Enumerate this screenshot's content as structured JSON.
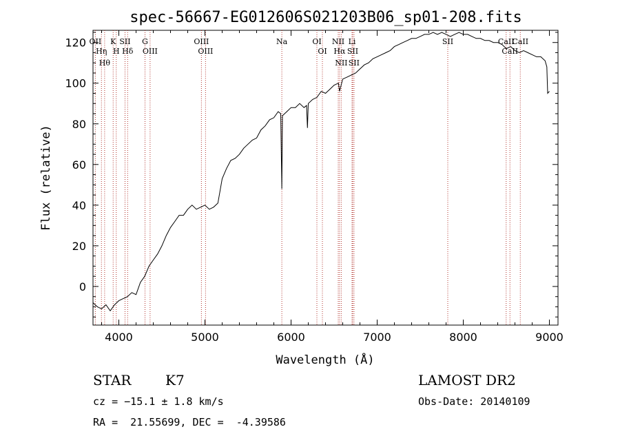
{
  "title": "spec-56667-EG012606S021203B06_sp01-208.fits",
  "chart_data": {
    "type": "line",
    "title": "spec-56667-EG012606S021203B06_sp01-208.fits",
    "xlabel": "Wavelength (Å)",
    "ylabel": "Flux (relative)",
    "xlim": [
      3700,
      9100
    ],
    "ylim": [
      -19,
      126
    ],
    "xticks": [
      4000,
      5000,
      6000,
      7000,
      8000,
      9000
    ],
    "yticks": [
      0,
      20,
      40,
      60,
      80,
      100,
      120
    ],
    "grid": false,
    "series": [
      {
        "x": [
          3700,
          3750,
          3800,
          3850,
          3900,
          3950,
          4000,
          4050,
          4100,
          4150,
          4200,
          4250,
          4300,
          4350,
          4400,
          4450,
          4500,
          4550,
          4600,
          4650,
          4700,
          4750,
          4800,
          4850,
          4900,
          4950,
          5000,
          5050,
          5100,
          5150,
          5200,
          5250,
          5300,
          5350,
          5400,
          5450,
          5500,
          5550,
          5600,
          5650,
          5700,
          5750,
          5800,
          5850,
          5880,
          5893,
          5900,
          5950,
          6000,
          6050,
          6100,
          6150,
          6180,
          6190,
          6200,
          6250,
          6300,
          6350,
          6400,
          6450,
          6500,
          6550,
          6563,
          6600,
          6650,
          6700,
          6750,
          6800,
          6850,
          6900,
          6950,
          7000,
          7050,
          7100,
          7150,
          7200,
          7250,
          7300,
          7350,
          7400,
          7450,
          7500,
          7550,
          7600,
          7650,
          7700,
          7750,
          7800,
          7850,
          7900,
          7950,
          8000,
          8050,
          8100,
          8150,
          8200,
          8250,
          8300,
          8350,
          8400,
          8450,
          8500,
          8550,
          8600,
          8650,
          8700,
          8750,
          8800,
          8850,
          8900,
          8950,
          8970,
          8980,
          9000
        ],
        "y": [
          -8,
          -10,
          -11,
          -9,
          -12,
          -9,
          -7,
          -6,
          -5,
          -3,
          -4,
          2,
          5,
          10,
          13,
          16,
          20,
          25,
          29,
          32,
          35,
          35,
          38,
          40,
          38,
          39,
          40,
          38,
          39,
          41,
          53,
          58,
          62,
          63,
          65,
          68,
          70,
          72,
          73,
          77,
          79,
          82,
          83,
          86,
          85,
          48,
          84,
          86,
          88,
          88,
          90,
          88,
          89,
          78,
          90,
          92,
          93,
          96,
          95,
          97,
          99,
          100,
          96,
          102,
          103,
          104,
          105,
          107,
          109,
          110,
          112,
          113,
          114,
          115,
          116,
          118,
          119,
          120,
          121,
          122,
          122,
          123,
          124,
          124,
          125,
          124,
          125,
          124,
          123,
          124,
          125,
          124,
          124,
          123,
          122,
          122,
          121,
          121,
          120,
          120,
          119,
          117,
          118,
          116,
          115,
          116,
          115,
          114,
          113,
          113,
          111,
          108,
          95,
          96
        ]
      }
    ],
    "line_markers": [
      {
        "wl": 3727,
        "labels": [
          "OII"
        ]
      },
      {
        "wl": 3798,
        "labels": [
          "Hη"
        ]
      },
      {
        "wl": 3835,
        "labels": [
          "Hθ"
        ]
      },
      {
        "wl": 3934,
        "labels": [
          "K"
        ]
      },
      {
        "wl": 3970,
        "labels": [
          "H"
        ]
      },
      {
        "wl": 4072,
        "labels": [
          "SII"
        ]
      },
      {
        "wl": 4102,
        "labels": [
          "Hδ"
        ]
      },
      {
        "wl": 4304,
        "labels": [
          "G"
        ]
      },
      {
        "wl": 4363,
        "labels": [
          "OIII"
        ]
      },
      {
        "wl": 4959,
        "labels": [
          "OIII"
        ]
      },
      {
        "wl": 5007,
        "labels": [
          "OIII"
        ]
      },
      {
        "wl": 5893,
        "labels": [
          "Na"
        ]
      },
      {
        "wl": 6300,
        "labels": [
          "OI"
        ]
      },
      {
        "wl": 6364,
        "labels": [
          "OI"
        ]
      },
      {
        "wl": 6548,
        "labels": [
          "NII"
        ]
      },
      {
        "wl": 6563,
        "labels": [
          "Hα"
        ]
      },
      {
        "wl": 6583,
        "labels": [
          "NII"
        ]
      },
      {
        "wl": 6708,
        "labels": [
          "Li"
        ]
      },
      {
        "wl": 6716,
        "labels": [
          "SII"
        ]
      },
      {
        "wl": 6731,
        "labels": [
          "SII"
        ]
      },
      {
        "wl": 7820,
        "labels": [
          "SII"
        ]
      },
      {
        "wl": 8498,
        "labels": [
          "CaII"
        ]
      },
      {
        "wl": 8542,
        "labels": [
          "CaII"
        ]
      },
      {
        "wl": 8662,
        "labels": [
          "CaII"
        ]
      }
    ]
  },
  "labels": {
    "class": "STAR",
    "subclass": "K7",
    "survey": "LAMOST DR2",
    "cz": "cz = −15.1 ± 1.8 km/s",
    "obsdate": "Obs-Date: 20140109",
    "radec": "RA =  21.55699, DEC =  -4.39586"
  }
}
